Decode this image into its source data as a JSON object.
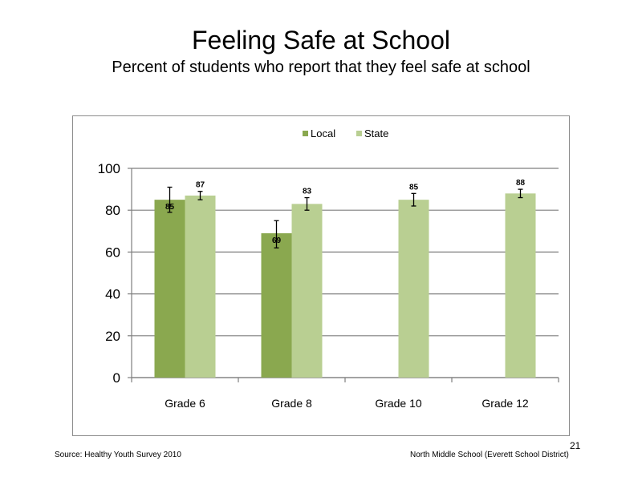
{
  "slide": {
    "title": "Feeling  Safe at School",
    "subtitle": "Percent of students  who report that they feel safe at school",
    "source": "Source: Healthy Youth Survey 2010",
    "school": "North Middle  School (Everett School District)",
    "page_number": "21"
  },
  "chart_data": {
    "type": "bar",
    "categories": [
      "Grade 6",
      "Grade 8",
      "Grade 10",
      "Grade 12"
    ],
    "series": [
      {
        "name": "Local",
        "color": "#8aa84f",
        "values": [
          85,
          69,
          null,
          null
        ],
        "labels": [
          "85",
          "69",
          "",
          ""
        ],
        "error_low": [
          79,
          62,
          null,
          null
        ],
        "error_high": [
          91,
          75,
          null,
          null
        ]
      },
      {
        "name": "State",
        "color": "#b9cf92",
        "values": [
          87,
          83,
          85,
          88
        ],
        "labels": [
          "87",
          "83",
          "85",
          "88"
        ],
        "error_low": [
          85,
          80,
          82,
          86
        ],
        "error_high": [
          89,
          86,
          88,
          90
        ]
      }
    ],
    "ylim": [
      0,
      100
    ],
    "yticks": [
      "0",
      "20",
      "40",
      "60",
      "80",
      "100"
    ],
    "grid": true,
    "legend_position": "top-center"
  }
}
